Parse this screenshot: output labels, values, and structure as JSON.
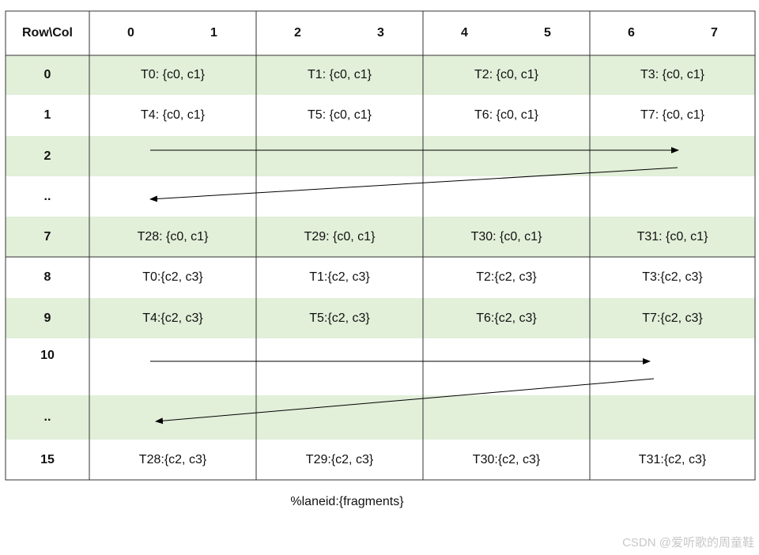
{
  "header": {
    "corner": "Row\\Col",
    "col_pairs": [
      [
        "0",
        "1"
      ],
      [
        "2",
        "3"
      ],
      [
        "4",
        "5"
      ],
      [
        "6",
        "7"
      ]
    ]
  },
  "rows": [
    {
      "label": "0",
      "cells": [
        "T0: {c0, c1}",
        "T1: {c0, c1}",
        "T2: {c0, c1}",
        "T3: {c0, c1}"
      ],
      "shaded": true
    },
    {
      "label": "1",
      "cells": [
        "T4: {c0, c1}",
        "T5: {c0, c1}",
        "T6: {c0, c1}",
        "T7: {c0, c1}"
      ],
      "shaded": false
    },
    {
      "label": "2",
      "cells": [
        "",
        "",
        "",
        ""
      ],
      "shaded": true
    },
    {
      "label": "..",
      "cells": [
        "",
        "",
        "",
        ""
      ],
      "shaded": false
    },
    {
      "label": "7",
      "cells": [
        "T28: {c0, c1}",
        "T29: {c0, c1}",
        "T30: {c0, c1}",
        "T31: {c0, c1}"
      ],
      "shaded": true
    },
    {
      "label": "8",
      "cells": [
        "T0:{c2, c3}",
        "T1:{c2, c3}",
        "T2:{c2, c3}",
        "T3:{c2, c3}"
      ],
      "shaded": false
    },
    {
      "label": "9",
      "cells": [
        "T4:{c2, c3}",
        "T5:{c2, c3}",
        "T6:{c2, c3}",
        "T7:{c2, c3}"
      ],
      "shaded": true
    },
    {
      "label": "10",
      "cells": [
        "",
        "",
        "",
        ""
      ],
      "shaded": false
    },
    {
      "label": "..",
      "cells": [
        "",
        "",
        "",
        ""
      ],
      "shaded": true
    },
    {
      "label": "15",
      "cells": [
        "T28:{c2, c3}",
        "T29:{c2, c3}",
        "T30:{c2, c3}",
        "T31:{c2, c3}"
      ],
      "shaded": false
    }
  ],
  "caption": "%laneid:{fragments}",
  "watermark": "CSDN @爱听歌的周童鞋",
  "colors": {
    "shade": "#e2efd9",
    "border": "#333333",
    "arrow": "#000000"
  }
}
